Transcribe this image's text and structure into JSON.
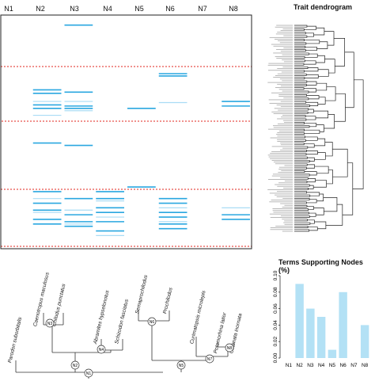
{
  "heatmap": {
    "columns": [
      "N1",
      "N2",
      "N3",
      "N4",
      "N5",
      "N6",
      "N7",
      "N8"
    ],
    "line_color": "#2aa7e0",
    "light_color": "#a9dcf5",
    "highlight_border": "#e0261e",
    "column_terms": [
      [],
      [
        0.32,
        0.335,
        0.37,
        0.385,
        0.4,
        0.43,
        0.55,
        0.76,
        0.79,
        0.81,
        0.84,
        0.85,
        0.88,
        0.9
      ],
      [
        0.04,
        0.33,
        0.37,
        0.39,
        0.4,
        0.41,
        0.56,
        0.79,
        0.84,
        0.86,
        0.89,
        0.9,
        0.91
      ],
      [
        0.76,
        0.79,
        0.8,
        0.83,
        0.85,
        0.87,
        0.89,
        0.93,
        0.95
      ],
      [
        0.4,
        0.74
      ],
      [
        0.25,
        0.26,
        0.375,
        0.79,
        0.81,
        0.83,
        0.85,
        0.87,
        0.89,
        0.9,
        0.92
      ],
      [],
      [
        0.37,
        0.39,
        0.83,
        0.86,
        0.88
      ]
    ]
  },
  "dendrogram": {
    "title": "Trait dendrogram",
    "leaf_count": 120
  },
  "tree": {
    "species": [
      "Parodon suborbitalis",
      "Caenotropus maculosus",
      "Chilodus punctatus",
      "Abramites hypselonotus",
      "Schizodon fasciatus",
      "Semaprochilodus",
      "Prochilodus",
      "Curimatopsis microlepis",
      "Potamorhina latior",
      "Curimata inornata"
    ],
    "nodes": [
      "N1",
      "N2",
      "N3",
      "N4",
      "N5",
      "N6",
      "N7",
      "N8"
    ]
  },
  "chart_data": {
    "type": "bar",
    "title": "Terms Supporting Nodes (%)",
    "categories": [
      "N1",
      "N2",
      "N3",
      "N4",
      "N5",
      "N6",
      "N7",
      "N8"
    ],
    "values": [
      0,
      0.09,
      0.06,
      0.05,
      0.01,
      0.08,
      0,
      0.04
    ],
    "ylim": [
      0,
      0.1
    ],
    "yticks": [
      "0.00",
      "0.02",
      "0.04",
      "0.06",
      "0.08",
      "0.10"
    ],
    "bar_color": "#b3e1f5",
    "xlabel": "",
    "ylabel": ""
  }
}
